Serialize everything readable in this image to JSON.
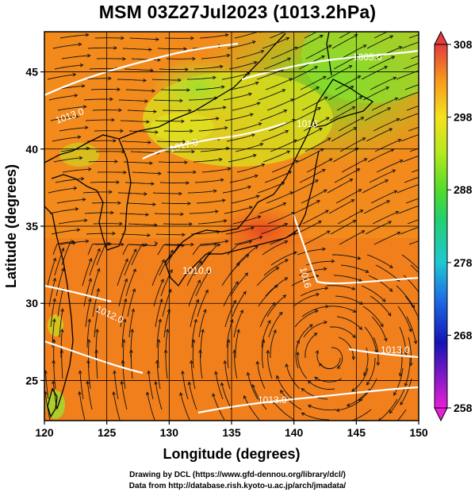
{
  "title": "MSM 03Z27Jul2023 (1013.2hPa)",
  "axes": {
    "xlabel": "Longitude (degrees)",
    "ylabel": "Latitude  (degrees)",
    "xlim": [
      120,
      150
    ],
    "ylim": [
      22.4,
      47.6
    ],
    "xticks": [
      120,
      125,
      130,
      135,
      140,
      145,
      150
    ],
    "yticks": [
      25,
      30,
      35,
      40,
      45
    ]
  },
  "colorbar": {
    "min": 258,
    "max": 308,
    "ticks": [
      258,
      268,
      278,
      288,
      298,
      308
    ],
    "colors": [
      "#e81fd8",
      "#1414b4",
      "#1e6ee6",
      "#1fc8d2",
      "#22d06e",
      "#52dc2a",
      "#b4e81e",
      "#f4e21e",
      "#f89a1e",
      "#ec5a1e",
      "#e33c3c"
    ]
  },
  "contour_labels": [
    "1005.0",
    "1013.0",
    "1013.0",
    "1016",
    "1016",
    "1017.0",
    "1012.0",
    "1013.0",
    "1010.0"
  ],
  "credits": {
    "line1": "Drawing by DCL (https://www.gfd-dennou.org/library/dcl/)",
    "line2": "Data from http://database.rish.kyoto-u.ac.jp/arch/jmadata/"
  },
  "chart_data": {
    "type": "heatmap",
    "title": "MSM 03Z27Jul2023 (1013.2hPa)",
    "xlabel": "Longitude (degrees)",
    "ylabel": "Latitude  (degrees)",
    "xlim": [
      120,
      150
    ],
    "ylim": [
      22.4,
      47.6
    ],
    "color_range": [
      258,
      308
    ],
    "colorbar_ticks": [
      258,
      268,
      278,
      288,
      298,
      308
    ],
    "grid": true,
    "overlays": [
      "temperature shading",
      "isobar contours (white)",
      "streamlines (black)",
      "coastlines"
    ]
  }
}
